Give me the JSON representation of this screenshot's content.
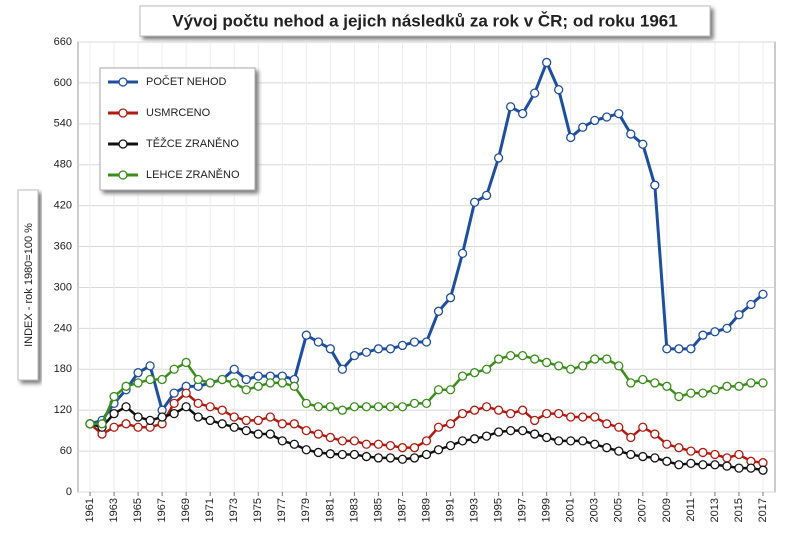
{
  "chart_data": {
    "type": "line",
    "title": "Vývoj počtu nehod a jejich následků za rok v ČR; od roku 1961",
    "y_label": "INDEX - rok 1980=100 %",
    "x": [
      1961,
      1962,
      1963,
      1964,
      1965,
      1966,
      1967,
      1968,
      1969,
      1970,
      1971,
      1972,
      1973,
      1974,
      1975,
      1976,
      1977,
      1978,
      1979,
      1980,
      1981,
      1982,
      1983,
      1984,
      1985,
      1986,
      1987,
      1988,
      1989,
      1990,
      1991,
      1992,
      1993,
      1994,
      1995,
      1996,
      1997,
      1998,
      1999,
      2000,
      2001,
      2002,
      2003,
      2004,
      2005,
      2006,
      2007,
      2008,
      2009,
      2010,
      2011,
      2012,
      2013,
      2014,
      2015,
      2016,
      2017
    ],
    "xlim": [
      1960,
      2018
    ],
    "xticks": [
      1961,
      1963,
      1965,
      1967,
      1969,
      1971,
      1973,
      1975,
      1977,
      1979,
      1981,
      1983,
      1985,
      1987,
      1989,
      1991,
      1993,
      1995,
      1997,
      1999,
      2001,
      2003,
      2005,
      2007,
      2009,
      2011,
      2013,
      2015,
      2017
    ],
    "ylim": [
      0,
      660
    ],
    "yticks": [
      0,
      60,
      120,
      180,
      240,
      300,
      360,
      420,
      480,
      540,
      600,
      660
    ],
    "grid": true,
    "legend": "upper left",
    "series": [
      {
        "name": "POČET NEHOD",
        "color": "#1f4e9c",
        "values": [
          100,
          105,
          130,
          150,
          175,
          185,
          120,
          145,
          155,
          155,
          160,
          165,
          180,
          165,
          170,
          170,
          170,
          165,
          230,
          220,
          210,
          180,
          200,
          205,
          210,
          210,
          215,
          220,
          220,
          265,
          285,
          350,
          425,
          435,
          490,
          565,
          555,
          585,
          630,
          590,
          520,
          535,
          545,
          550,
          555,
          525,
          510,
          450,
          210,
          210,
          210,
          230,
          235,
          240,
          260,
          275,
          290
        ]
      },
      {
        "name": "USMRCENO",
        "color": "#b01a10",
        "values": [
          100,
          85,
          95,
          100,
          95,
          95,
          100,
          130,
          145,
          130,
          125,
          120,
          110,
          105,
          105,
          110,
          100,
          100,
          90,
          85,
          80,
          75,
          75,
          70,
          70,
          68,
          65,
          65,
          75,
          95,
          100,
          115,
          120,
          125,
          120,
          115,
          120,
          105,
          115,
          115,
          110,
          110,
          110,
          100,
          95,
          80,
          95,
          85,
          70,
          65,
          60,
          58,
          55,
          50,
          55,
          45,
          43
        ]
      },
      {
        "name": "TĚŽCE ZRANĚNO",
        "color": "#111111",
        "values": [
          100,
          95,
          115,
          125,
          110,
          105,
          110,
          115,
          125,
          110,
          105,
          100,
          95,
          90,
          85,
          85,
          75,
          70,
          62,
          58,
          56,
          55,
          55,
          52,
          50,
          50,
          48,
          50,
          55,
          62,
          68,
          75,
          78,
          82,
          88,
          90,
          90,
          85,
          80,
          75,
          75,
          75,
          70,
          65,
          60,
          55,
          52,
          50,
          45,
          40,
          42,
          40,
          40,
          38,
          35,
          35,
          32
        ]
      },
      {
        "name": "LEHCE ZRANĚNO",
        "color": "#3a8c1c",
        "values": [
          100,
          100,
          140,
          155,
          160,
          165,
          165,
          180,
          190,
          165,
          160,
          165,
          160,
          150,
          155,
          160,
          160,
          155,
          130,
          125,
          125,
          120,
          125,
          125,
          125,
          125,
          125,
          130,
          130,
          150,
          150,
          170,
          175,
          180,
          195,
          200,
          200,
          195,
          190,
          185,
          180,
          185,
          195,
          195,
          185,
          160,
          165,
          160,
          155,
          140,
          145,
          145,
          150,
          155,
          155,
          160,
          160
        ]
      }
    ]
  }
}
